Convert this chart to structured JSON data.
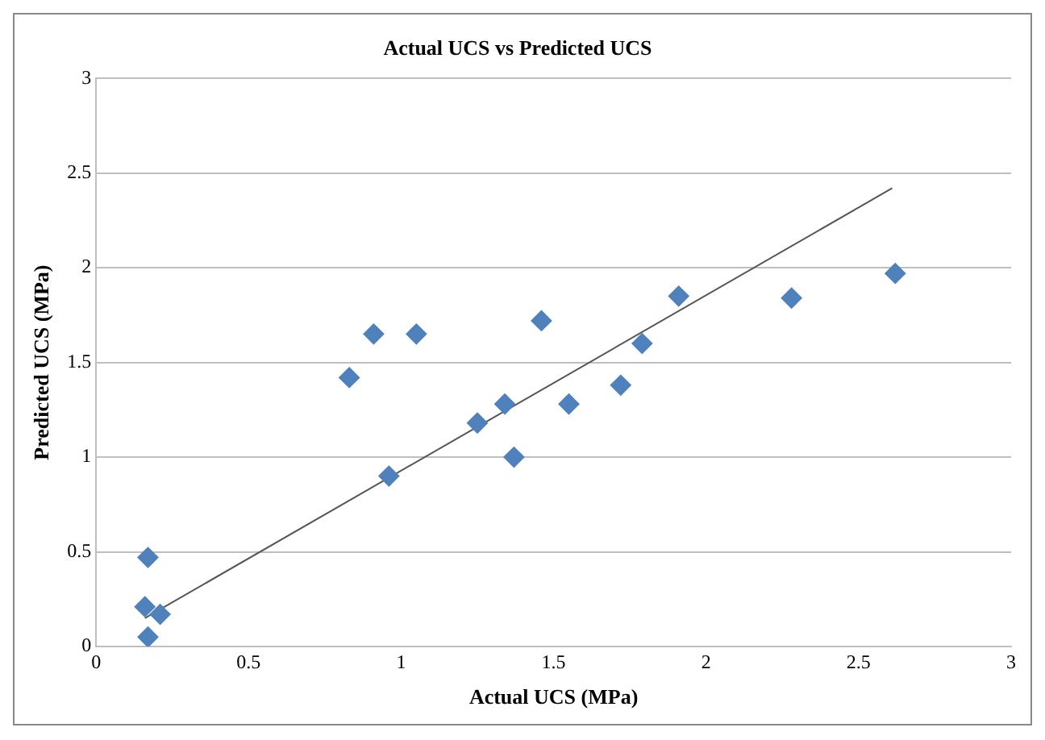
{
  "chart_data": {
    "type": "scatter",
    "title": "Actual UCS vs Predicted UCS",
    "xlabel": "Actual UCS (MPa)",
    "ylabel": "Predicted UCS (MPa)",
    "series": [
      {
        "color": "#4f81bd",
        "x": [
          0.17,
          0.16,
          0.21,
          0.17,
          0.83,
          0.91,
          1.05,
          0.96,
          1.25,
          1.34,
          1.37,
          1.46,
          1.55,
          1.72,
          1.79,
          1.91,
          2.28,
          2.62
        ],
        "values": [
          0.05,
          0.21,
          0.17,
          0.47,
          1.42,
          1.65,
          1.65,
          0.9,
          1.18,
          1.28,
          1.0,
          1.72,
          1.28,
          1.38,
          1.6,
          1.85,
          1.84,
          1.97
        ],
        "marker": "diamond"
      },
      {
        "type": "line",
        "color": "#555555",
        "x": [
          0.16,
          2.61
        ],
        "values": [
          0.15,
          2.42
        ],
        "marker": "none"
      }
    ],
    "xlim": [
      0,
      3
    ],
    "xticks": [
      0,
      0.5,
      1,
      1.5,
      2,
      2.5,
      3
    ],
    "ylim": [
      0,
      3
    ],
    "yticks": [
      0,
      0.5,
      1,
      1.5,
      2,
      2.5,
      3
    ],
    "grid": "y",
    "legend": false
  }
}
